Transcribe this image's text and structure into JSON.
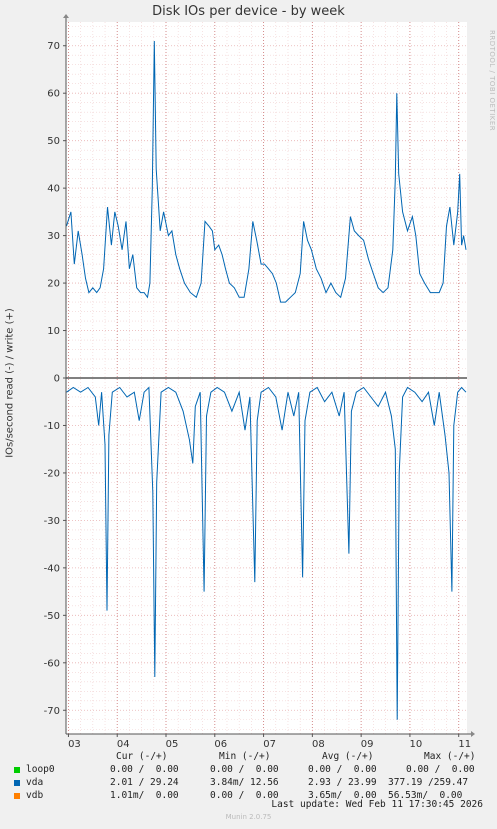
{
  "title": "Disk IOs per device - by week",
  "ylabel": "IOs/second read (-) / write (+)",
  "watermark": "RRDTOOL / TOBI OETIKER",
  "colors": {
    "loop0": "#00cc00",
    "vda": "#0066b3",
    "vdb": "#ff8000",
    "grid_minor": "#e8b0b0",
    "grid_major": "#d08080"
  },
  "legend": {
    "headers": [
      "Cur (-/+)",
      "Min (-/+)",
      "Avg (-/+)",
      "Max (-/+)"
    ],
    "rows": [
      {
        "name": "loop0",
        "cur": "0.00 /  0.00",
        "min": "0.00 /  0.00",
        "avg": "0.00 /  0.00",
        "max": "0.00 /  0.00"
      },
      {
        "name": "vda",
        "cur": "2.01 / 29.24",
        "min": "3.84m/ 12.56",
        "avg": "2.93 / 23.99",
        "max": "377.19 /259.47"
      },
      {
        "name": "vdb",
        "cur": "1.01m/  0.00",
        "min": "0.00 /  0.00",
        "avg": "3.65m/  0.00",
        "max": "56.53m/  0.00"
      }
    ]
  },
  "last_update": "Last update: Wed Feb 11 17:30:45 2026",
  "footer": "Munin 2.0.75",
  "chart_data": {
    "type": "line",
    "title": "Disk IOs per device - by week",
    "ylabel": "IOs/second read (-) / write (+)",
    "ylim": [
      -75,
      75
    ],
    "yticks": [
      70,
      60,
      50,
      40,
      30,
      20,
      10,
      0,
      -10,
      -20,
      -30,
      -40,
      -50,
      -60,
      -70
    ],
    "xlim": [
      2.95,
      11.17
    ],
    "xticks": [
      3,
      4,
      5,
      6,
      7,
      8,
      9,
      10,
      11
    ],
    "xticklabels": [
      "03",
      "04",
      "05",
      "06",
      "07",
      "08",
      "09",
      "10",
      "11"
    ],
    "grid": true,
    "series": [
      {
        "name": "vda",
        "color": "#0066b3",
        "write": [
          [
            2.96,
            32
          ],
          [
            3.05,
            35
          ],
          [
            3.12,
            24
          ],
          [
            3.2,
            31
          ],
          [
            3.28,
            26
          ],
          [
            3.35,
            21
          ],
          [
            3.42,
            18
          ],
          [
            3.5,
            19
          ],
          [
            3.58,
            18
          ],
          [
            3.65,
            19
          ],
          [
            3.72,
            23
          ],
          [
            3.8,
            36
          ],
          [
            3.88,
            28
          ],
          [
            3.95,
            35
          ],
          [
            4.02,
            32
          ],
          [
            4.1,
            27
          ],
          [
            4.18,
            33
          ],
          [
            4.25,
            23
          ],
          [
            4.32,
            26
          ],
          [
            4.4,
            19
          ],
          [
            4.48,
            18
          ],
          [
            4.55,
            18
          ],
          [
            4.62,
            17
          ],
          [
            4.67,
            20
          ],
          [
            4.72,
            40
          ],
          [
            4.76,
            71
          ],
          [
            4.8,
            44
          ],
          [
            4.88,
            31
          ],
          [
            4.95,
            35
          ],
          [
            5.05,
            30
          ],
          [
            5.12,
            31
          ],
          [
            5.2,
            26
          ],
          [
            5.28,
            23
          ],
          [
            5.38,
            20
          ],
          [
            5.5,
            18
          ],
          [
            5.62,
            17
          ],
          [
            5.72,
            20
          ],
          [
            5.8,
            33
          ],
          [
            5.88,
            32
          ],
          [
            5.95,
            31
          ],
          [
            6.0,
            27
          ],
          [
            6.08,
            28
          ],
          [
            6.15,
            26
          ],
          [
            6.22,
            23
          ],
          [
            6.3,
            20
          ],
          [
            6.4,
            19
          ],
          [
            6.5,
            17
          ],
          [
            6.6,
            17
          ],
          [
            6.7,
            23
          ],
          [
            6.78,
            33
          ],
          [
            6.86,
            29
          ],
          [
            6.95,
            24
          ],
          [
            7.02,
            24
          ],
          [
            7.1,
            23
          ],
          [
            7.18,
            22
          ],
          [
            7.26,
            20
          ],
          [
            7.35,
            16
          ],
          [
            7.45,
            16
          ],
          [
            7.55,
            17
          ],
          [
            7.65,
            18
          ],
          [
            7.75,
            22
          ],
          [
            7.82,
            33
          ],
          [
            7.9,
            29
          ],
          [
            7.98,
            27
          ],
          [
            8.08,
            23
          ],
          [
            8.18,
            21
          ],
          [
            8.28,
            18
          ],
          [
            8.38,
            20
          ],
          [
            8.48,
            18
          ],
          [
            8.58,
            17
          ],
          [
            8.68,
            21
          ],
          [
            8.78,
            34
          ],
          [
            8.86,
            31
          ],
          [
            8.95,
            30
          ],
          [
            9.05,
            29
          ],
          [
            9.15,
            25
          ],
          [
            9.25,
            22
          ],
          [
            9.35,
            19
          ],
          [
            9.45,
            18
          ],
          [
            9.55,
            19
          ],
          [
            9.65,
            27
          ],
          [
            9.7,
            42
          ],
          [
            9.73,
            60
          ],
          [
            9.77,
            43
          ],
          [
            9.85,
            35
          ],
          [
            9.95,
            31
          ],
          [
            10.05,
            34
          ],
          [
            10.12,
            30
          ],
          [
            10.2,
            22
          ],
          [
            10.3,
            20
          ],
          [
            10.42,
            18
          ],
          [
            10.52,
            18
          ],
          [
            10.6,
            18
          ],
          [
            10.68,
            20
          ],
          [
            10.75,
            32
          ],
          [
            10.82,
            36
          ],
          [
            10.9,
            28
          ],
          [
            10.98,
            35
          ],
          [
            11.02,
            43
          ],
          [
            11.06,
            28
          ],
          [
            11.1,
            30
          ],
          [
            11.15,
            27
          ]
        ],
        "read": [
          [
            2.96,
            -3
          ],
          [
            3.1,
            -2
          ],
          [
            3.25,
            -3
          ],
          [
            3.4,
            -2
          ],
          [
            3.55,
            -4
          ],
          [
            3.62,
            -10
          ],
          [
            3.68,
            -3
          ],
          [
            3.75,
            -14
          ],
          [
            3.79,
            -49
          ],
          [
            3.83,
            -12
          ],
          [
            3.9,
            -3
          ],
          [
            4.05,
            -2
          ],
          [
            4.2,
            -4
          ],
          [
            4.35,
            -3
          ],
          [
            4.45,
            -9
          ],
          [
            4.55,
            -3
          ],
          [
            4.65,
            -2
          ],
          [
            4.73,
            -24
          ],
          [
            4.77,
            -63
          ],
          [
            4.81,
            -22
          ],
          [
            4.9,
            -3
          ],
          [
            5.05,
            -2
          ],
          [
            5.2,
            -3
          ],
          [
            5.35,
            -7
          ],
          [
            5.48,
            -13
          ],
          [
            5.55,
            -18
          ],
          [
            5.6,
            -6
          ],
          [
            5.7,
            -3
          ],
          [
            5.78,
            -45
          ],
          [
            5.83,
            -8
          ],
          [
            5.92,
            -3
          ],
          [
            6.05,
            -2
          ],
          [
            6.2,
            -3
          ],
          [
            6.35,
            -7
          ],
          [
            6.5,
            -3
          ],
          [
            6.62,
            -11
          ],
          [
            6.72,
            -4
          ],
          [
            6.82,
            -43
          ],
          [
            6.87,
            -9
          ],
          [
            6.95,
            -3
          ],
          [
            7.1,
            -2
          ],
          [
            7.25,
            -4
          ],
          [
            7.38,
            -11
          ],
          [
            7.5,
            -3
          ],
          [
            7.62,
            -8
          ],
          [
            7.72,
            -3
          ],
          [
            7.8,
            -42
          ],
          [
            7.85,
            -9
          ],
          [
            7.95,
            -3
          ],
          [
            8.1,
            -2
          ],
          [
            8.25,
            -5
          ],
          [
            8.4,
            -3
          ],
          [
            8.55,
            -8
          ],
          [
            8.65,
            -3
          ],
          [
            8.75,
            -37
          ],
          [
            8.8,
            -7
          ],
          [
            8.9,
            -3
          ],
          [
            9.05,
            -2
          ],
          [
            9.2,
            -4
          ],
          [
            9.35,
            -6
          ],
          [
            9.5,
            -3
          ],
          [
            9.62,
            -8
          ],
          [
            9.7,
            -15
          ],
          [
            9.74,
            -72
          ],
          [
            9.78,
            -20
          ],
          [
            9.85,
            -4
          ],
          [
            9.95,
            -2
          ],
          [
            10.1,
            -3
          ],
          [
            10.25,
            -5
          ],
          [
            10.38,
            -3
          ],
          [
            10.5,
            -10
          ],
          [
            10.6,
            -3
          ],
          [
            10.72,
            -12
          ],
          [
            10.8,
            -20
          ],
          [
            10.86,
            -45
          ],
          [
            10.9,
            -10
          ],
          [
            10.98,
            -3
          ],
          [
            11.06,
            -2
          ],
          [
            11.15,
            -3
          ]
        ]
      },
      {
        "name": "loop0",
        "color": "#00cc00",
        "write": [
          [
            2.96,
            0
          ],
          [
            11.15,
            0
          ]
        ],
        "read": [
          [
            2.96,
            0
          ],
          [
            11.15,
            0
          ]
        ]
      },
      {
        "name": "vdb",
        "color": "#ff8000",
        "write": [
          [
            2.96,
            0
          ],
          [
            11.15,
            0
          ]
        ],
        "read": [
          [
            2.96,
            0
          ],
          [
            11.15,
            0
          ]
        ]
      }
    ]
  }
}
